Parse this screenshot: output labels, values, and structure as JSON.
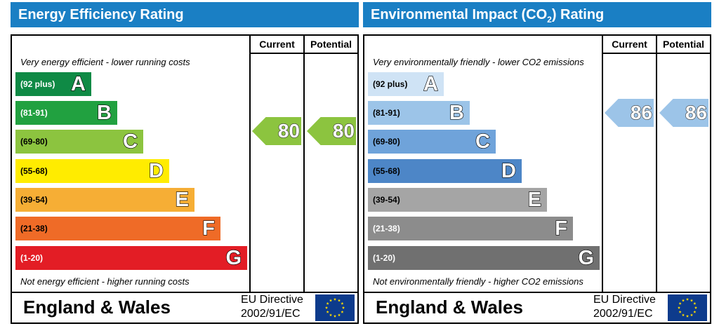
{
  "energy": {
    "title": "Energy Efficiency Rating",
    "col_current": "Current",
    "col_potential": "Potential",
    "top_note": "Very energy efficient - lower running costs",
    "bottom_note": "Not energy efficient - higher running costs",
    "bands": [
      {
        "range": "(92 plus)",
        "letter": "A",
        "color": "#0f8a45",
        "text_color": "#ffffff"
      },
      {
        "range": "(81-91)",
        "letter": "B",
        "color": "#21a140",
        "text_color": "#ffffff"
      },
      {
        "range": "(69-80)",
        "letter": "C",
        "color": "#8cc43f",
        "text_color": "#000000"
      },
      {
        "range": "(55-68)",
        "letter": "D",
        "color": "#ffec00",
        "text_color": "#000000"
      },
      {
        "range": "(39-54)",
        "letter": "E",
        "color": "#f6ae35",
        "text_color": "#000000"
      },
      {
        "range": "(21-38)",
        "letter": "F",
        "color": "#ef6b27",
        "text_color": "#000000"
      },
      {
        "range": "(1-20)",
        "letter": "G",
        "color": "#e31d25",
        "text_color": "#ffffff"
      }
    ],
    "current": {
      "value": "80",
      "color": "#8cc43f"
    },
    "potential": {
      "value": "80",
      "color": "#8cc43f"
    },
    "country": "England & Wales",
    "directive_line1": "EU Directive",
    "directive_line2": "2002/91/EC"
  },
  "environment": {
    "title_main": "Environmental Impact (CO",
    "title_sub": "2",
    "title_end": ") Rating",
    "col_current": "Current",
    "col_potential": "Potential",
    "top_note": "Very environmentally friendly - lower CO2 emissions",
    "bottom_note": "Not environmentally friendly - higher CO2 emissions",
    "bands": [
      {
        "range": "(92 plus)",
        "letter": "A",
        "color": "#cfe3f5",
        "text_color": "#000000"
      },
      {
        "range": "(81-91)",
        "letter": "B",
        "color": "#9cc4e8",
        "text_color": "#000000"
      },
      {
        "range": "(69-80)",
        "letter": "C",
        "color": "#6fa3da",
        "text_color": "#000000"
      },
      {
        "range": "(55-68)",
        "letter": "D",
        "color": "#4d86c7",
        "text_color": "#000000"
      },
      {
        "range": "(39-54)",
        "letter": "E",
        "color": "#a5a5a5",
        "text_color": "#000000"
      },
      {
        "range": "(21-38)",
        "letter": "F",
        "color": "#8c8c8c",
        "text_color": "#ffffff"
      },
      {
        "range": "(1-20)",
        "letter": "G",
        "color": "#707070",
        "text_color": "#ffffff"
      }
    ],
    "current": {
      "value": "86",
      "color": "#9cc4e8"
    },
    "potential": {
      "value": "86",
      "color": "#9cc4e8"
    },
    "country": "England & Wales",
    "directive_line1": "EU Directive",
    "directive_line2": "2002/91/EC"
  }
}
